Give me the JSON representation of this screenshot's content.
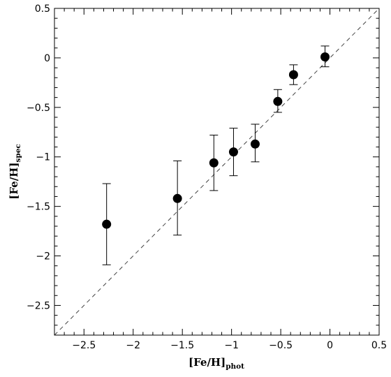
{
  "chart_data": {
    "type": "scatter",
    "title": "",
    "xlabel": "[Fe/H]",
    "xlabel_sub": "phot",
    "ylabel": "[Fe/H]",
    "ylabel_sub": "spec",
    "xlim": [
      -2.8,
      0.5
    ],
    "ylim": [
      -2.8,
      0.5
    ],
    "x_ticks": [
      -2.5,
      -2,
      -1.5,
      -1,
      -0.5,
      0,
      0.5
    ],
    "x_tick_labels": [
      "−2.5",
      "−2",
      "−1.5",
      "−1",
      "−0.5",
      "0",
      "0.5"
    ],
    "y_ticks": [
      -2.5,
      -2,
      -1.5,
      -1,
      -0.5,
      0,
      0.5
    ],
    "y_tick_labels": [
      "−2.5",
      "−2",
      "−1.5",
      "−1",
      "−0.5",
      "0",
      "0.5"
    ],
    "grid": false,
    "reference_line": {
      "type": "one-to-one",
      "style": "dashed"
    },
    "points": [
      {
        "x": -2.27,
        "y": -1.68,
        "y_low": -2.09,
        "y_high": -1.27
      },
      {
        "x": -1.55,
        "y": -1.42,
        "y_low": -1.79,
        "y_high": -1.04
      },
      {
        "x": -1.18,
        "y": -1.06,
        "y_low": -1.34,
        "y_high": -0.78
      },
      {
        "x": -0.98,
        "y": -0.95,
        "y_low": -1.19,
        "y_high": -0.71
      },
      {
        "x": -0.76,
        "y": -0.87,
        "y_low": -1.05,
        "y_high": -0.67
      },
      {
        "x": -0.53,
        "y": -0.44,
        "y_low": -0.55,
        "y_high": -0.32
      },
      {
        "x": -0.37,
        "y": -0.17,
        "y_low": -0.27,
        "y_high": -0.07
      },
      {
        "x": -0.05,
        "y": 0.01,
        "y_low": -0.09,
        "y_high": 0.12
      }
    ],
    "colors": {
      "marker": "#000000",
      "axis": "#000000",
      "reference_line": "#444444"
    }
  }
}
